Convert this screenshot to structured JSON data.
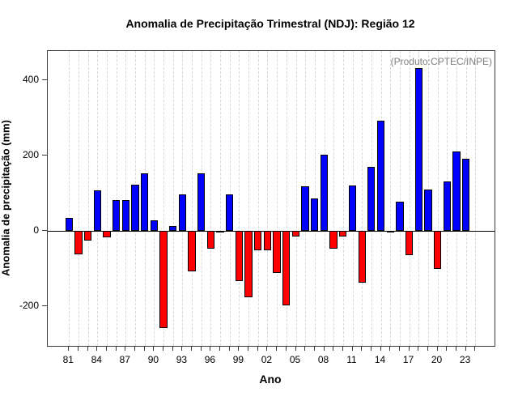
{
  "chart_data": {
    "type": "bar",
    "title": "Anomalia de Precipitação Trimestral (NDJ): Região 12",
    "annotation": "(Produto:CPTEC/INPE)",
    "xlabel": "Ano",
    "ylabel": "Anomalia de precipitação (mm)",
    "years": [
      1981,
      1982,
      1983,
      1984,
      1985,
      1986,
      1987,
      1988,
      1989,
      1990,
      1991,
      1992,
      1993,
      1994,
      1995,
      1996,
      1997,
      1998,
      1999,
      2000,
      2001,
      2002,
      2003,
      2004,
      2005,
      2006,
      2007,
      2008,
      2009,
      2010,
      2011,
      2012,
      2013,
      2014,
      2015,
      2016,
      2017,
      2018,
      2019,
      2020,
      2021,
      2022,
      2023
    ],
    "values": [
      35,
      -63,
      -25,
      107,
      -18,
      82,
      82,
      123,
      153,
      29,
      -257,
      12,
      97,
      -108,
      153,
      -47,
      -3,
      97,
      -133,
      -177,
      -52,
      -52,
      -112,
      -198,
      -14,
      118,
      87,
      203,
      -48,
      -14,
      121,
      -137,
      171,
      293,
      -5,
      78,
      -65,
      432,
      109,
      -101,
      132,
      211,
      191
    ],
    "x_tick_labels": [
      "81",
      "84",
      "87",
      "90",
      "93",
      "96",
      "99",
      "02",
      "05",
      "08",
      "11",
      "14",
      "17",
      "20",
      "23"
    ],
    "x_labeled_years": [
      1981,
      1984,
      1987,
      1990,
      1993,
      1996,
      1999,
      2002,
      2005,
      2008,
      2011,
      2014,
      2017,
      2020,
      2023
    ],
    "x_tick_year_range": [
      1981,
      2024
    ],
    "y_ticks": [
      "-200",
      "0",
      "200",
      "400"
    ],
    "y_tick_values": [
      -200,
      0,
      200,
      400
    ],
    "ylim": [
      -305,
      477
    ],
    "grid": "vertical dashed gridlines at every year tick",
    "legend_position": "none",
    "colors": {
      "positive_bar": "#0000ff",
      "negative_bar": "#ff0000",
      "bar_border": "#000000",
      "gridline": "#d8d8d8",
      "zero_line": "#000000",
      "axis_box": "#3a3a3a",
      "annotation_text": "#808080",
      "background": "#ffffff"
    }
  }
}
